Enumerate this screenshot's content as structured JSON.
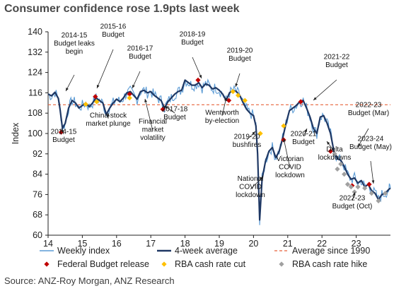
{
  "title": "Consumer confidence rose 1.9pts last week",
  "source": "Source: ANZ-Roy Morgan, ANZ Research",
  "colors": {
    "weekly": "#5b9bd5",
    "avg4": "#1f3864",
    "average_line": "#e8623a",
    "budget": "#c00000",
    "cut": "#ffc000",
    "hike": "#a0a0a0"
  },
  "chart_data": {
    "type": "line",
    "ylabel": "Index",
    "xlabel": "",
    "ylim": [
      60,
      140
    ],
    "xlim": [
      14,
      24
    ],
    "yticks": [
      60,
      68,
      76,
      84,
      92,
      100,
      108,
      116,
      124,
      132,
      140
    ],
    "xticks": [
      14,
      15,
      16,
      17,
      18,
      19,
      20,
      21,
      22,
      23
    ],
    "xtick_labels": [
      "14",
      "15",
      "16",
      "17",
      "18",
      "19",
      "20",
      "21",
      "22",
      "23"
    ],
    "average_since_1990": 111.3,
    "legend": [
      {
        "label": "Weekly index",
        "kind": "line-thin"
      },
      {
        "label": "4-week average",
        "kind": "line-thick"
      },
      {
        "label": "Average since 1990",
        "kind": "dashed"
      },
      {
        "label": "Federal Budget release",
        "kind": "marker-budget"
      },
      {
        "label": "RBA cash rate cut",
        "kind": "marker-cut"
      },
      {
        "label": "RBA cash rate hike",
        "kind": "marker-hike"
      }
    ],
    "series": [
      {
        "name": "4-week average",
        "points": [
          [
            14.0,
            115.5
          ],
          [
            14.1,
            114.8
          ],
          [
            14.2,
            116.2
          ],
          [
            14.3,
            113.8
          ],
          [
            14.35,
            109.5
          ],
          [
            14.42,
            102
          ],
          [
            14.5,
            104
          ],
          [
            14.6,
            110
          ],
          [
            14.7,
            113
          ],
          [
            14.8,
            112
          ],
          [
            14.9,
            110
          ],
          [
            15.0,
            111
          ],
          [
            15.1,
            112
          ],
          [
            15.2,
            110.5
          ],
          [
            15.3,
            112
          ],
          [
            15.4,
            114
          ],
          [
            15.5,
            113
          ],
          [
            15.6,
            112
          ],
          [
            15.7,
            107.5
          ],
          [
            15.8,
            110
          ],
          [
            15.9,
            112
          ],
          [
            16.0,
            113.5
          ],
          [
            16.1,
            112.5
          ],
          [
            16.2,
            114
          ],
          [
            16.3,
            116
          ],
          [
            16.4,
            116.5
          ],
          [
            16.5,
            115
          ],
          [
            16.6,
            113.5
          ],
          [
            16.7,
            116.5
          ],
          [
            16.8,
            117
          ],
          [
            16.9,
            116
          ],
          [
            17.0,
            116.5
          ],
          [
            17.1,
            115
          ],
          [
            17.2,
            114
          ],
          [
            17.3,
            113
          ],
          [
            17.4,
            110
          ],
          [
            17.5,
            112.5
          ],
          [
            17.6,
            114
          ],
          [
            17.7,
            115.5
          ],
          [
            17.8,
            116.5
          ],
          [
            17.9,
            117
          ],
          [
            18.0,
            121
          ],
          [
            18.1,
            120
          ],
          [
            18.2,
            119
          ],
          [
            18.3,
            119
          ],
          [
            18.4,
            120
          ],
          [
            18.5,
            118
          ],
          [
            18.6,
            119.5
          ],
          [
            18.7,
            119
          ],
          [
            18.8,
            117.5
          ],
          [
            18.9,
            118
          ],
          [
            19.0,
            117
          ],
          [
            19.1,
            115.5
          ],
          [
            19.2,
            113
          ],
          [
            19.3,
            116
          ],
          [
            19.4,
            117
          ],
          [
            19.5,
            116.5
          ],
          [
            19.6,
            115
          ],
          [
            19.7,
            112
          ],
          [
            19.8,
            109.5
          ],
          [
            19.9,
            108
          ],
          [
            20.0,
            107
          ],
          [
            20.07,
            103
          ],
          [
            20.12,
            92
          ],
          [
            20.18,
            66
          ],
          [
            20.25,
            82
          ],
          [
            20.35,
            89
          ],
          [
            20.45,
            93
          ],
          [
            20.55,
            94.5
          ],
          [
            20.65,
            90.5
          ],
          [
            20.75,
            93
          ],
          [
            20.85,
            98
          ],
          [
            20.95,
            104
          ],
          [
            21.05,
            109
          ],
          [
            21.15,
            110
          ],
          [
            21.25,
            111
          ],
          [
            21.35,
            112.5
          ],
          [
            21.45,
            113
          ],
          [
            21.55,
            110
          ],
          [
            21.65,
            106.5
          ],
          [
            21.75,
            102
          ],
          [
            21.85,
            100
          ],
          [
            21.95,
            106.5
          ],
          [
            22.05,
            107
          ],
          [
            22.15,
            104
          ],
          [
            22.25,
            100
          ],
          [
            22.35,
            93
          ],
          [
            22.45,
            90
          ],
          [
            22.55,
            89.5
          ],
          [
            22.65,
            87
          ],
          [
            22.75,
            84
          ],
          [
            22.85,
            82
          ],
          [
            22.95,
            82.5
          ],
          [
            23.05,
            80.5
          ],
          [
            23.15,
            81.5
          ],
          [
            23.25,
            79
          ],
          [
            23.35,
            80
          ],
          [
            23.45,
            77.5
          ],
          [
            23.55,
            76.5
          ],
          [
            23.65,
            74
          ],
          [
            23.75,
            76
          ],
          [
            23.85,
            76.5
          ],
          [
            23.95,
            78
          ],
          [
            24.0,
            78.5
          ]
        ]
      }
    ],
    "markers": {
      "budget": [
        [
          14.38,
          100.5
        ],
        [
          15.38,
          114.5
        ],
        [
          16.38,
          115.5
        ],
        [
          17.35,
          109.5
        ],
        [
          18.38,
          121
        ],
        [
          19.28,
          113
        ],
        [
          20.88,
          97.5
        ],
        [
          21.38,
          112.5
        ],
        [
          22.25,
          93
        ],
        [
          22.88,
          79.5
        ],
        [
          23.38,
          80
        ]
      ],
      "cut": [
        [
          15.1,
          111.5
        ],
        [
          15.42,
          112.5
        ],
        [
          16.38,
          114
        ],
        [
          19.4,
          116.5
        ],
        [
          19.55,
          115
        ],
        [
          19.75,
          113
        ],
        [
          20.2,
          100
        ],
        [
          20.88,
          103
        ]
      ],
      "hike": [
        [
          22.37,
          92
        ],
        [
          22.45,
          86
        ],
        [
          22.55,
          88
        ],
        [
          22.65,
          84
        ],
        [
          22.75,
          80
        ],
        [
          22.85,
          79
        ],
        [
          22.95,
          77
        ],
        [
          23.05,
          79
        ],
        [
          23.25,
          78.5
        ],
        [
          23.45,
          76.5
        ],
        [
          23.65,
          73.5
        ],
        [
          23.85,
          76.5
        ]
      ]
    },
    "annotations": [
      {
        "id": "a1",
        "lines": [
          "2014-15",
          "Budget leaks",
          "begin"
        ]
      },
      {
        "id": "a2",
        "lines": [
          "2015-16",
          "Budget"
        ]
      },
      {
        "id": "a3",
        "lines": [
          "2016-17",
          "Budget"
        ]
      },
      {
        "id": "a4",
        "lines": [
          "2018-19",
          "Budget"
        ]
      },
      {
        "id": "a5",
        "lines": [
          "2019-20",
          "Budget"
        ]
      },
      {
        "id": "a6",
        "lines": [
          "2021-22",
          "Budget"
        ]
      },
      {
        "id": "a7",
        "lines": [
          "2014-15",
          "Budget"
        ]
      },
      {
        "id": "a8",
        "lines": [
          "China stock",
          "market plunge"
        ]
      },
      {
        "id": "a9",
        "lines": [
          "Financial",
          "market",
          "volatility"
        ]
      },
      {
        "id": "a10",
        "lines": [
          "2017-18",
          "Budget"
        ]
      },
      {
        "id": "a11",
        "lines": [
          "Wentworth",
          "by-election"
        ]
      },
      {
        "id": "a12",
        "lines": [
          "2019-20",
          "bushfires"
        ]
      },
      {
        "id": "a13",
        "lines": [
          "2020-21",
          "Budget"
        ]
      },
      {
        "id": "a14",
        "lines": [
          "Victorian",
          "COVID",
          "lockdown"
        ]
      },
      {
        "id": "a15",
        "lines": [
          "National",
          "COVID",
          "lockdown"
        ]
      },
      {
        "id": "a16",
        "lines": [
          "2022-23",
          "Budget (Mar)"
        ]
      },
      {
        "id": "a17",
        "lines": [
          "Delta",
          "lockdowns"
        ]
      },
      {
        "id": "a18",
        "lines": [
          "2023-24",
          "Budget (May)"
        ]
      },
      {
        "id": "a19",
        "lines": [
          "2022-23",
          "Budget (Oct)"
        ]
      }
    ]
  }
}
